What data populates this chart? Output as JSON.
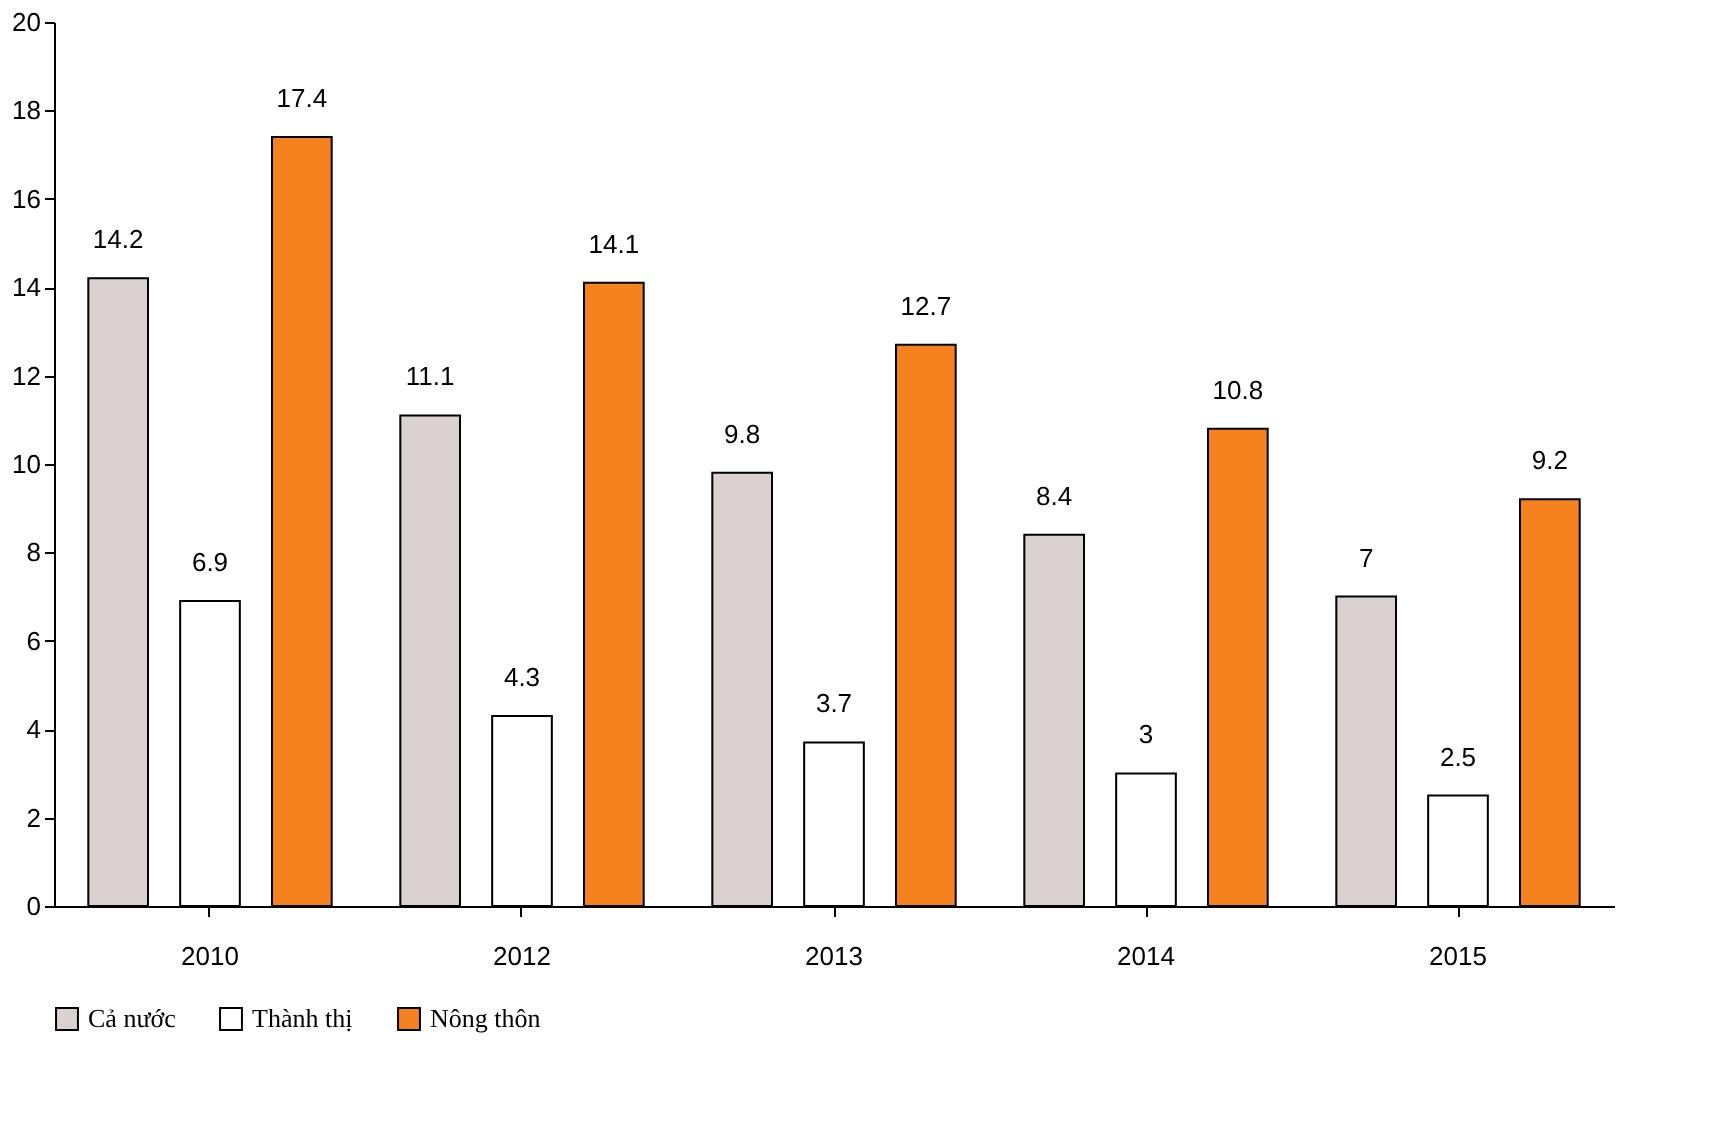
{
  "chart_data": {
    "type": "bar",
    "categories": [
      "2010",
      "2012",
      "2013",
      "2014",
      "2015"
    ],
    "series": [
      {
        "name": "Cả nước",
        "color": "#d9d2d0",
        "values": [
          14.2,
          11.1,
          9.8,
          8.4,
          7
        ]
      },
      {
        "name": "Thành thị",
        "color": "#ffffff",
        "values": [
          6.9,
          4.3,
          3.7,
          3,
          2.5
        ]
      },
      {
        "name": "Nông thôn",
        "color": "#f5821f",
        "values": [
          17.4,
          14.1,
          12.7,
          10.8,
          9.2
        ]
      }
    ],
    "ylim": [
      0,
      20
    ],
    "yticks": [
      0,
      2,
      4,
      6,
      8,
      10,
      12,
      14,
      16,
      18,
      20
    ],
    "grid": false,
    "legend": "bottom",
    "data_labels": true
  }
}
